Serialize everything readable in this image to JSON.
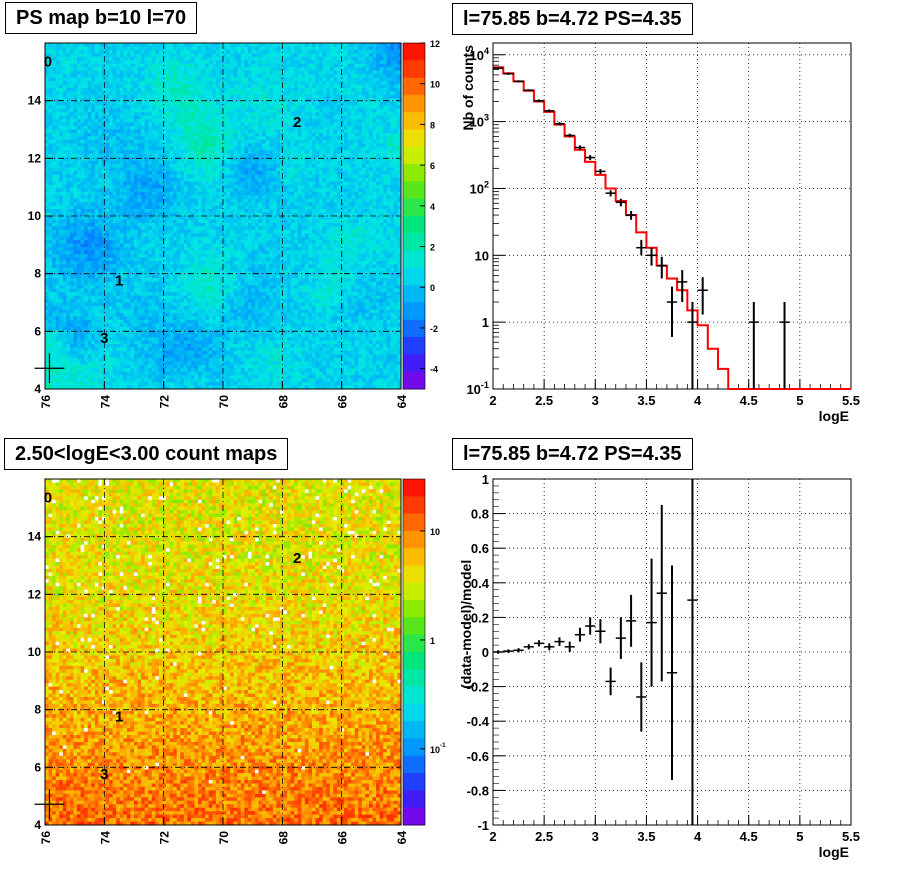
{
  "panels": {
    "ps_map_title": "PS map b=10 l=70",
    "spectrum_title": "l=75.85 b=4.72 PS=4.35",
    "count_map_title": "2.50<logE<3.00 count maps",
    "residual_title": "l=75.85 b=4.72 PS=4.35"
  },
  "colors": {
    "data": "#000000",
    "model": "#ff0000"
  },
  "chart_data": [
    {
      "type": "heatmap",
      "title": "PS map b=10 l=70",
      "x_ticks": [
        "76",
        "74",
        "72",
        "70",
        "68",
        "66",
        "64"
      ],
      "xlim": [
        76,
        64
      ],
      "y_ticks": [
        "4",
        "6",
        "8",
        "10",
        "12",
        "14"
      ],
      "ylim": [
        4,
        16
      ],
      "colorbar": {
        "range": [
          -5,
          12
        ],
        "ticks": [
          "-4",
          "-2",
          "0",
          "2",
          "4",
          "6",
          "8",
          "10",
          "12"
        ],
        "scale": "linear"
      },
      "source_labels": [
        {
          "text": "0",
          "l": 75.9,
          "b": 15.4
        },
        {
          "text": "1",
          "l": 73.5,
          "b": 7.8
        },
        {
          "text": "2",
          "l": 67.5,
          "b": 13.3
        },
        {
          "text": "3",
          "l": 74.0,
          "b": 5.8
        }
      ],
      "marker": {
        "l": 75.85,
        "b": 4.72
      },
      "grid": true
    },
    {
      "type": "line",
      "title": "l=75.85 b=4.72 PS=4.35",
      "xlabel": "logE",
      "ylabel": "Nb of counts",
      "xlim": [
        2,
        5.5
      ],
      "ylim": [
        0.1,
        15000
      ],
      "y_scale": "log",
      "x_ticks": [
        "2",
        "2.5",
        "3",
        "3.5",
        "4",
        "4.5",
        "5",
        "5.5"
      ],
      "y_ticks": [
        "10^-1",
        "1",
        "10",
        "10^2",
        "10^3",
        "10^4"
      ],
      "grid": true,
      "model": {
        "bin_edges": [
          2.0,
          2.1,
          2.2,
          2.3,
          2.4,
          2.5,
          2.6,
          2.7,
          2.8,
          2.9,
          3.0,
          3.1,
          3.2,
          3.3,
          3.4,
          3.5,
          3.6,
          3.7,
          3.8,
          3.9,
          4.0,
          4.1,
          4.2,
          4.3,
          4.4,
          4.5,
          4.6,
          4.7,
          4.8,
          4.9,
          5.0,
          5.1,
          5.2,
          5.3,
          5.4,
          5.5
        ],
        "values": [
          6500,
          5300,
          4000,
          2900,
          2000,
          1400,
          900,
          600,
          380,
          250,
          160,
          100,
          65,
          40,
          22,
          13,
          7,
          4.5,
          3,
          1.5,
          0.9,
          0.4,
          0.2,
          0.1,
          0.1,
          0.1,
          0.1,
          0.1,
          0.1,
          0.1,
          0.1,
          0.1,
          0.1,
          0.1,
          0.1
        ]
      },
      "data": [
        {
          "x": 2.05,
          "y": 6300,
          "lo": 6100,
          "hi": 6500
        },
        {
          "x": 2.15,
          "y": 5200,
          "lo": 5000,
          "hi": 5400
        },
        {
          "x": 2.25,
          "y": 4000,
          "lo": 3850,
          "hi": 4150
        },
        {
          "x": 2.35,
          "y": 2950,
          "lo": 2850,
          "hi": 3050
        },
        {
          "x": 2.45,
          "y": 2050,
          "lo": 1960,
          "hi": 2140
        },
        {
          "x": 2.55,
          "y": 1450,
          "lo": 1380,
          "hi": 1520
        },
        {
          "x": 2.65,
          "y": 930,
          "lo": 880,
          "hi": 980
        },
        {
          "x": 2.75,
          "y": 620,
          "lo": 580,
          "hi": 660
        },
        {
          "x": 2.85,
          "y": 410,
          "lo": 380,
          "hi": 440
        },
        {
          "x": 2.95,
          "y": 290,
          "lo": 265,
          "hi": 315
        },
        {
          "x": 3.05,
          "y": 180,
          "lo": 165,
          "hi": 195
        },
        {
          "x": 3.15,
          "y": 85,
          "lo": 76,
          "hi": 94
        },
        {
          "x": 3.25,
          "y": 62,
          "lo": 54,
          "hi": 70
        },
        {
          "x": 3.35,
          "y": 40,
          "lo": 34,
          "hi": 46
        },
        {
          "x": 3.45,
          "y": 13,
          "lo": 10,
          "hi": 17
        },
        {
          "x": 3.55,
          "y": 10,
          "lo": 7,
          "hi": 13
        },
        {
          "x": 3.65,
          "y": 7,
          "lo": 4.5,
          "hi": 9.5
        },
        {
          "x": 3.75,
          "y": 2,
          "lo": 0.6,
          "hi": 3.4
        },
        {
          "x": 3.85,
          "y": 4,
          "lo": 2,
          "hi": 6
        },
        {
          "x": 3.95,
          "y": 1,
          "lo": 0.1,
          "hi": 2
        },
        {
          "x": 4.05,
          "y": 3,
          "lo": 1.3,
          "hi": 4.7
        },
        {
          "x": 4.55,
          "y": 1,
          "lo": 0.1,
          "hi": 2
        },
        {
          "x": 4.85,
          "y": 1,
          "lo": 0.1,
          "hi": 2
        }
      ]
    },
    {
      "type": "heatmap",
      "title": "2.50<logE<3.00 count maps",
      "x_ticks": [
        "76",
        "74",
        "72",
        "70",
        "68",
        "66",
        "64"
      ],
      "xlim": [
        76,
        64
      ],
      "y_ticks": [
        "4",
        "6",
        "8",
        "10",
        "12",
        "14"
      ],
      "ylim": [
        4,
        16
      ],
      "colorbar": {
        "range": [
          0.02,
          30
        ],
        "ticks": [
          "10",
          "1",
          "10^-1"
        ],
        "scale": "log"
      },
      "source_labels": [
        {
          "text": "0",
          "l": 75.9,
          "b": 15.4
        },
        {
          "text": "1",
          "l": 73.5,
          "b": 7.8
        },
        {
          "text": "2",
          "l": 67.5,
          "b": 13.3
        },
        {
          "text": "3",
          "l": 74.0,
          "b": 5.8
        }
      ],
      "marker": {
        "l": 75.85,
        "b": 4.72
      },
      "grid": true
    },
    {
      "type": "scatter",
      "title": "l=75.85 b=4.72 PS=4.35",
      "xlabel": "logE",
      "ylabel": "(data-model)/model",
      "xlim": [
        2,
        5.5
      ],
      "ylim": [
        -1,
        1
      ],
      "x_ticks": [
        "2",
        "2.5",
        "3",
        "3.5",
        "4",
        "4.5",
        "5",
        "5.5"
      ],
      "y_ticks": [
        "-1",
        "-0.8",
        "-0.6",
        "-0.4",
        "-0.2",
        "0",
        "0.2",
        "0.4",
        "0.6",
        "0.8",
        "1"
      ],
      "grid": true,
      "points": [
        {
          "x": 2.05,
          "y": 0.0,
          "err": 0.01
        },
        {
          "x": 2.15,
          "y": 0.005,
          "err": 0.01
        },
        {
          "x": 2.25,
          "y": 0.01,
          "err": 0.012
        },
        {
          "x": 2.35,
          "y": 0.03,
          "err": 0.015
        },
        {
          "x": 2.45,
          "y": 0.05,
          "err": 0.018
        },
        {
          "x": 2.55,
          "y": 0.03,
          "err": 0.02
        },
        {
          "x": 2.65,
          "y": 0.06,
          "err": 0.025
        },
        {
          "x": 2.75,
          "y": 0.03,
          "err": 0.03
        },
        {
          "x": 2.85,
          "y": 0.1,
          "err": 0.04
        },
        {
          "x": 2.95,
          "y": 0.15,
          "err": 0.05
        },
        {
          "x": 3.05,
          "y": 0.12,
          "err": 0.07
        },
        {
          "x": 3.15,
          "y": -0.17,
          "err": 0.08
        },
        {
          "x": 3.25,
          "y": 0.08,
          "err": 0.12
        },
        {
          "x": 3.35,
          "y": 0.18,
          "err": 0.15
        },
        {
          "x": 3.45,
          "y": -0.26,
          "err": 0.2
        },
        {
          "x": 3.55,
          "y": 0.17,
          "err": 0.37
        },
        {
          "x": 3.65,
          "y": 0.34,
          "err": 0.51
        },
        {
          "x": 3.75,
          "y": -0.12,
          "err": 0.62
        },
        {
          "x": 3.95,
          "y": 0.3,
          "err": 1.3
        }
      ]
    }
  ]
}
